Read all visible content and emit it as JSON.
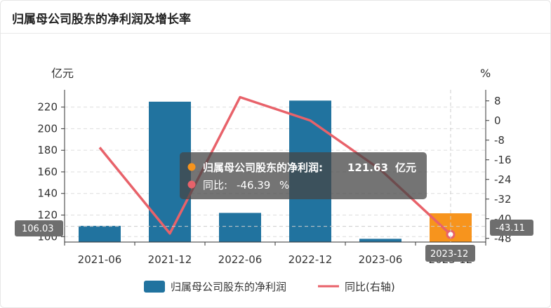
{
  "header": {
    "title": "归属母公司股东的净利润及增长率"
  },
  "chart_data": {
    "type": "bar",
    "categories": [
      "2021-06",
      "2021-12",
      "2022-06",
      "2022-12",
      "2023-06",
      "2023-12"
    ],
    "series": [
      {
        "name": "归属母公司股东的净利润",
        "type": "bar",
        "axis": "left",
        "values": [
          110,
          225,
          122,
          226,
          98,
          121.63
        ]
      },
      {
        "name": "同比(右轴)",
        "type": "line",
        "axis": "right",
        "values": [
          -11,
          -46,
          9.5,
          0,
          -20,
          -46.39
        ]
      }
    ],
    "y_left": {
      "unit": "亿元",
      "ticks": [
        100,
        120,
        140,
        160,
        180,
        200,
        220
      ],
      "range": [
        95,
        236
      ]
    },
    "y_right": {
      "unit": "%",
      "ticks": [
        8,
        0,
        -8,
        -16,
        -24,
        -32,
        -40,
        -48
      ],
      "range": [
        -49.5,
        12.5
      ]
    },
    "highlight_index": 5,
    "colors": {
      "bar": "#21739f",
      "bar_highlight": "#f7941d",
      "line": "#e8626a"
    },
    "grid": true,
    "legend_position": "bottom",
    "axis_pointer": {
      "left_value": "106.03",
      "right_value": "-43.11",
      "category": "2023-12"
    },
    "tooltip": {
      "series1_label": "归属母公司股东的净利润:",
      "series1_value": "121.63",
      "series1_unit": "亿元",
      "series2_label": "同比:",
      "series2_value": "-46.39",
      "series2_unit": "%"
    }
  }
}
